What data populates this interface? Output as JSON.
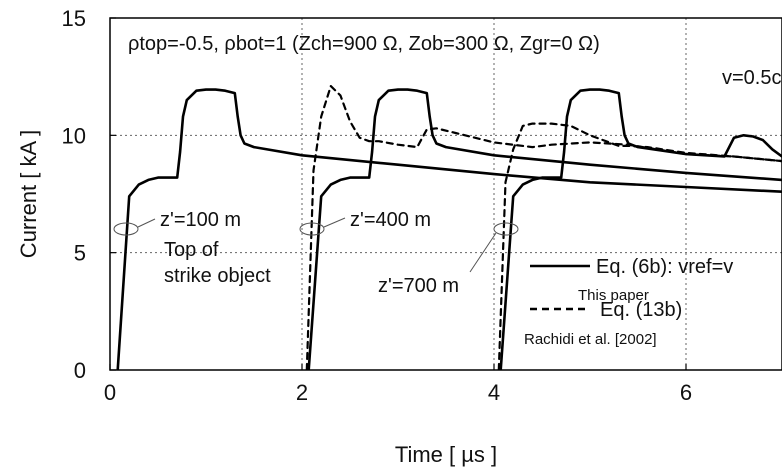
{
  "chart_data": {
    "type": "line",
    "xlabel": "Time [ µs ]",
    "ylabel": "Current [ kA ]",
    "xlim": [
      0,
      7
    ],
    "ylim": [
      0,
      15
    ],
    "xticks": [
      "0",
      "2",
      "4",
      "6"
    ],
    "yticks": [
      "0",
      "5",
      "10",
      "15"
    ],
    "grid": "dotted, major ticks",
    "header_text": "ρtop=-0.5,  ρbot=1   (Zch=900 Ω, Zob=300 Ω, Zgr=0 Ω)",
    "speed_label": "v=0.5c",
    "annotations": [
      {
        "text": "z'=100 m"
      },
      {
        "text": "Top of"
      },
      {
        "text": "strike object"
      },
      {
        "text": "z'=400 m"
      },
      {
        "text": "z'=700 m"
      }
    ],
    "legend": [
      {
        "label": "Eq. (6b): vref=v",
        "sublabel": "This paper",
        "style": "solid"
      },
      {
        "label": "Eq. (13b)",
        "sublabel": "Rachidi et al. [2002]",
        "style": "dashed"
      }
    ],
    "series": [
      {
        "name": "Eq. (6b): vref=v, z'=100 m",
        "style": "solid",
        "x": [
          0.08,
          0.2,
          0.3,
          0.4,
          0.5,
          0.55,
          0.7,
          0.73,
          0.76,
          0.8,
          0.9,
          1.0,
          1.1,
          1.2,
          1.3,
          1.33,
          1.36,
          1.4,
          1.5,
          2.0,
          3.0,
          4.0,
          5.0,
          6.0,
          7.0
        ],
        "y": [
          0.0,
          7.4,
          7.9,
          8.1,
          8.2,
          8.2,
          8.2,
          9.3,
          10.8,
          11.5,
          11.9,
          11.95,
          11.95,
          11.9,
          11.8,
          10.8,
          10.0,
          9.65,
          9.5,
          9.15,
          8.75,
          8.35,
          8.0,
          7.8,
          7.6
        ]
      },
      {
        "name": "Eq. (6b): vref=v, z'=400 m",
        "style": "solid",
        "x": [
          2.07,
          2.2,
          2.3,
          2.4,
          2.5,
          2.55,
          2.7,
          2.73,
          2.76,
          2.8,
          2.9,
          3.0,
          3.1,
          3.2,
          3.3,
          3.33,
          3.36,
          3.4,
          3.5,
          4.0,
          5.0,
          6.0,
          7.0
        ],
        "y": [
          0.0,
          7.4,
          7.9,
          8.1,
          8.2,
          8.2,
          8.2,
          9.3,
          10.8,
          11.5,
          11.9,
          11.95,
          11.95,
          11.9,
          11.8,
          10.8,
          10.0,
          9.65,
          9.5,
          9.15,
          8.75,
          8.4,
          8.1
        ]
      },
      {
        "name": "Eq. (6b): vref=v, z'=700 m",
        "style": "solid",
        "x": [
          4.07,
          4.2,
          4.3,
          4.4,
          4.5,
          4.55,
          4.7,
          4.73,
          4.76,
          4.8,
          4.9,
          5.0,
          5.1,
          5.2,
          5.3,
          5.33,
          5.36,
          5.4,
          5.5,
          6.0,
          6.4,
          6.5,
          6.6,
          6.7,
          6.8,
          6.9,
          7.0
        ],
        "y": [
          0.0,
          7.4,
          7.9,
          8.1,
          8.2,
          8.2,
          8.2,
          9.3,
          10.8,
          11.5,
          11.9,
          11.95,
          11.95,
          11.9,
          11.8,
          10.8,
          10.0,
          9.65,
          9.5,
          9.2,
          9.1,
          9.9,
          10.0,
          9.95,
          9.8,
          9.4,
          9.1
        ]
      },
      {
        "name": "Eq. (13b), z'=400 m",
        "style": "dashed",
        "x": [
          2.05,
          2.12,
          2.2,
          2.3,
          2.4,
          2.5,
          2.6,
          2.7,
          2.8,
          3.0,
          3.2,
          3.3,
          3.4,
          3.6,
          4.0,
          4.4,
          4.6,
          5.0,
          5.4,
          6.0,
          6.5,
          7.0
        ],
        "y": [
          0.0,
          8.5,
          10.8,
          12.1,
          11.7,
          10.6,
          9.9,
          9.75,
          9.75,
          9.6,
          9.5,
          10.25,
          10.3,
          10.1,
          9.7,
          9.5,
          9.6,
          9.7,
          9.6,
          9.2,
          9.1,
          8.9
        ]
      },
      {
        "name": "Eq. (13b), z'=700 m",
        "style": "dashed",
        "x": [
          4.05,
          4.12,
          4.2,
          4.3,
          4.4,
          4.6,
          4.8,
          5.0,
          5.3,
          5.4,
          5.6,
          6.0,
          6.5,
          7.0
        ],
        "y": [
          0.0,
          8.0,
          9.4,
          10.4,
          10.5,
          10.5,
          10.4,
          10.0,
          9.55,
          9.55,
          9.5,
          9.25,
          9.1,
          8.9
        ]
      }
    ]
  }
}
